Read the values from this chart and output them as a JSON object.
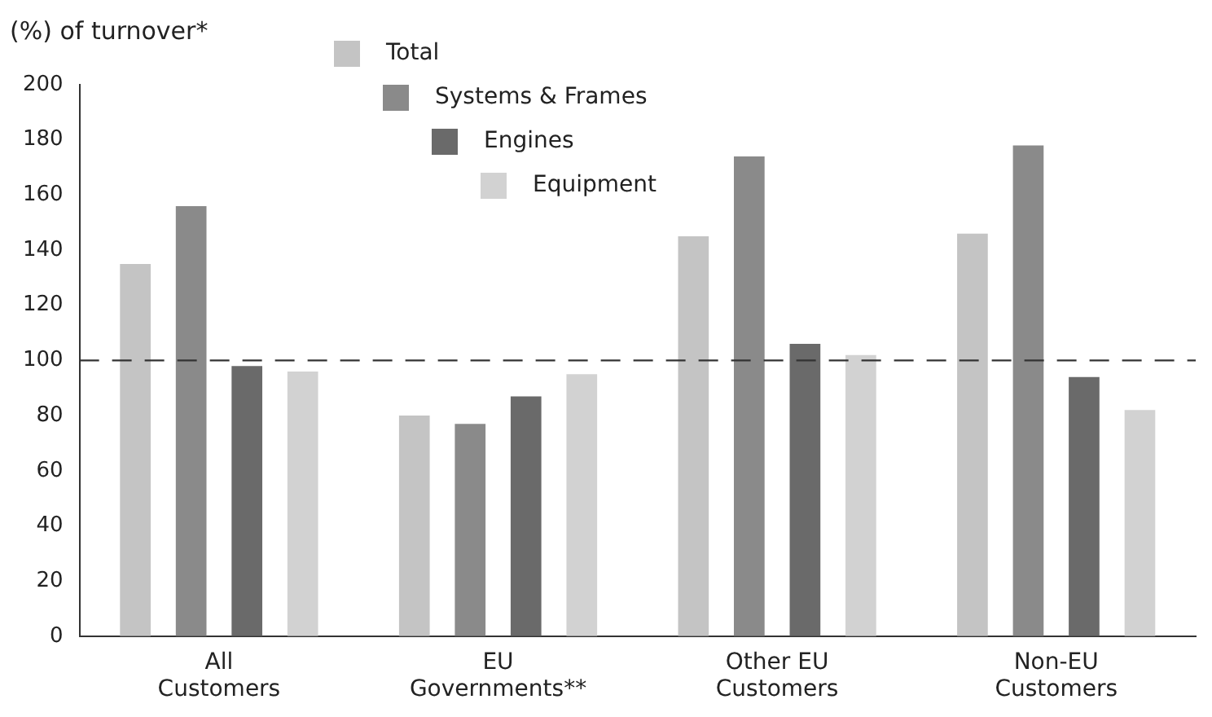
{
  "chart_data": {
    "type": "bar",
    "ylabel": "(%) of turnover*",
    "categories": [
      "All\nCustomers",
      "EU\nGovernments**",
      "Other EU\nCustomers",
      "Non-EU\nCustomers"
    ],
    "series": [
      {
        "name": "Total",
        "color": "#c4c4c4",
        "values": [
          135,
          80,
          145,
          146
        ]
      },
      {
        "name": "Systems & Frames",
        "color": "#8a8a8a",
        "values": [
          156,
          77,
          174,
          178
        ]
      },
      {
        "name": "Engines",
        "color": "#6a6a6a",
        "values": [
          98,
          87,
          106,
          94
        ]
      },
      {
        "name": "Equipment",
        "color": "#d2d2d2",
        "values": [
          96,
          95,
          102,
          82
        ]
      }
    ],
    "ylim": [
      0,
      200
    ],
    "yticks": [
      0,
      20,
      40,
      60,
      80,
      100,
      120,
      140,
      160,
      180,
      200
    ],
    "ref_lines": [
      {
        "axis": "y",
        "value": 100,
        "line_style": "dashed",
        "color": "#333333"
      }
    ],
    "grid": false,
    "legend": "top"
  }
}
